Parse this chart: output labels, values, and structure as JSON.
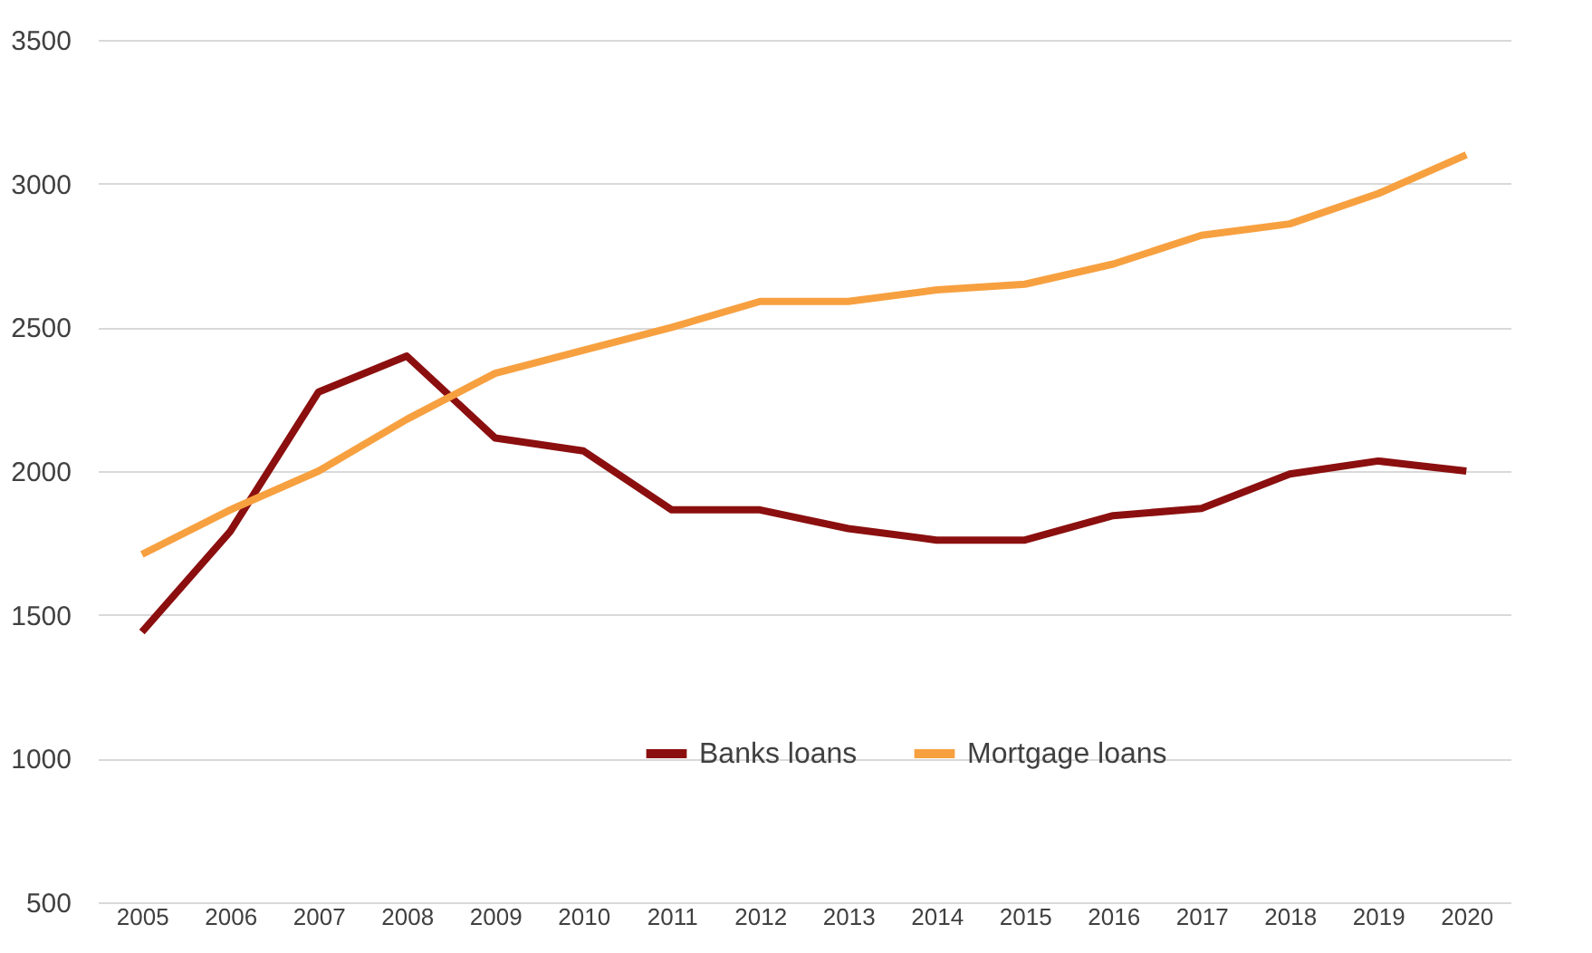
{
  "chart_data": {
    "type": "line",
    "categories": [
      "2005",
      "2006",
      "2007",
      "2008",
      "2009",
      "2010",
      "2011",
      "2012",
      "2013",
      "2014",
      "2015",
      "2016",
      "2017",
      "2018",
      "2019",
      "2020"
    ],
    "series": [
      {
        "name": "Banks loans",
        "color": "#8b0f0f",
        "values": [
          1440,
          1790,
          2275,
          2400,
          2115,
          2070,
          1865,
          1865,
          1800,
          1760,
          1760,
          1845,
          1870,
          1990,
          2035,
          2000
        ]
      },
      {
        "name": "Mortgage loans",
        "color": "#f7a040",
        "values": [
          1710,
          1865,
          2000,
          2180,
          2340,
          2420,
          2500,
          2590,
          2590,
          2630,
          2650,
          2720,
          2820,
          2860,
          2965,
          3100
        ]
      }
    ],
    "ylim": [
      500,
      3500
    ],
    "yticks": [
      500,
      1000,
      1500,
      2000,
      2500,
      3000,
      3500
    ],
    "grid": "y",
    "legend": "bottom",
    "marker": "none",
    "line_style": "solid"
  }
}
